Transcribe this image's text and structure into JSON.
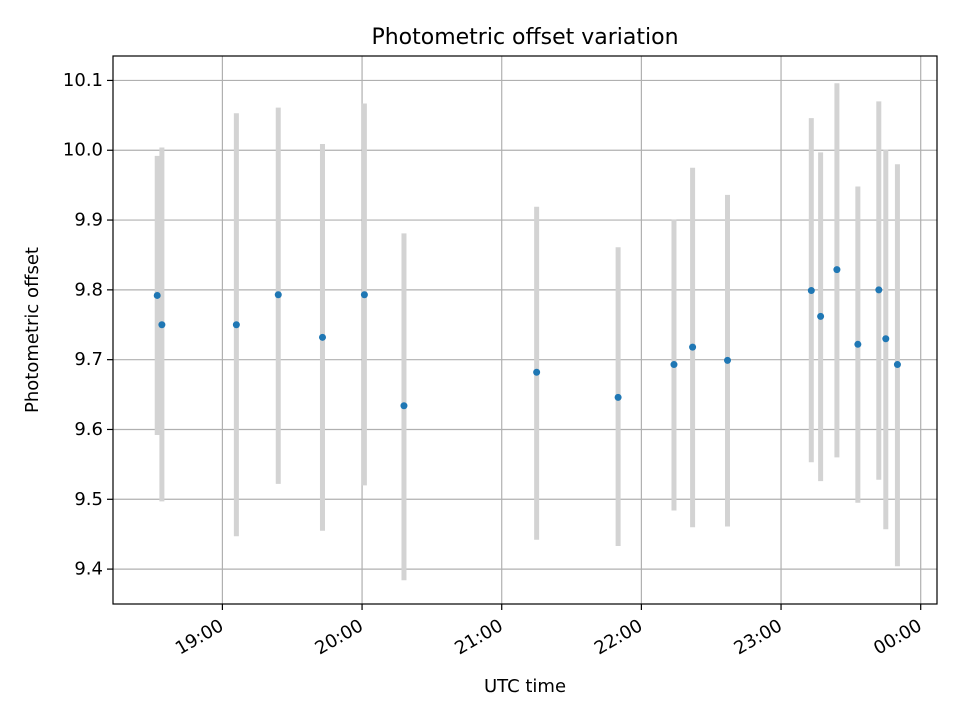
{
  "chart_data": {
    "type": "scatter",
    "title": "Photometric offset variation",
    "xlabel": "UTC time",
    "ylabel": "Photometric offset",
    "x_ticks": [
      "19:00",
      "20:00",
      "21:00",
      "22:00",
      "23:00",
      "00:00"
    ],
    "y_ticks": [
      "9.4",
      "9.5",
      "9.6",
      "9.7",
      "9.8",
      "9.9",
      "10.0",
      "10.1"
    ],
    "xlim": [
      "18:13",
      "00:07"
    ],
    "ylim": [
      9.35,
      10.135
    ],
    "grid": true,
    "colors": {
      "marker": "#1f77b4",
      "errorbar": "#d3d3d3",
      "grid": "#b0b0b0"
    },
    "points": [
      {
        "x": "18:32",
        "y": 9.792,
        "ylow": 9.592,
        "yhigh": 9.992
      },
      {
        "x": "18:34",
        "y": 9.75,
        "ylow": 9.497,
        "yhigh": 10.004
      },
      {
        "x": "19:06",
        "y": 9.75,
        "ylow": 9.447,
        "yhigh": 10.053
      },
      {
        "x": "19:24",
        "y": 9.793,
        "ylow": 9.522,
        "yhigh": 10.061
      },
      {
        "x": "19:43",
        "y": 9.732,
        "ylow": 9.455,
        "yhigh": 10.009
      },
      {
        "x": "20:01",
        "y": 9.793,
        "ylow": 9.52,
        "yhigh": 10.067
      },
      {
        "x": "20:18",
        "y": 9.634,
        "ylow": 9.384,
        "yhigh": 9.881
      },
      {
        "x": "21:15",
        "y": 9.682,
        "ylow": 9.442,
        "yhigh": 9.919
      },
      {
        "x": "21:50",
        "y": 9.646,
        "ylow": 9.433,
        "yhigh": 9.861
      },
      {
        "x": "22:14",
        "y": 9.693,
        "ylow": 9.484,
        "yhigh": 9.901
      },
      {
        "x": "22:22",
        "y": 9.718,
        "ylow": 9.46,
        "yhigh": 9.975
      },
      {
        "x": "22:37",
        "y": 9.699,
        "ylow": 9.461,
        "yhigh": 9.936
      },
      {
        "x": "23:13",
        "y": 9.799,
        "ylow": 9.553,
        "yhigh": 10.046
      },
      {
        "x": "23:17",
        "y": 9.762,
        "ylow": 9.526,
        "yhigh": 9.997
      },
      {
        "x": "23:24",
        "y": 9.829,
        "ylow": 9.56,
        "yhigh": 10.096
      },
      {
        "x": "23:33",
        "y": 9.722,
        "ylow": 9.495,
        "yhigh": 9.948
      },
      {
        "x": "23:42",
        "y": 9.8,
        "ylow": 9.528,
        "yhigh": 10.07
      },
      {
        "x": "23:45",
        "y": 9.73,
        "ylow": 9.457,
        "yhigh": 10.001
      },
      {
        "x": "23:50",
        "y": 9.693,
        "ylow": 9.404,
        "yhigh": 9.98
      }
    ]
  }
}
